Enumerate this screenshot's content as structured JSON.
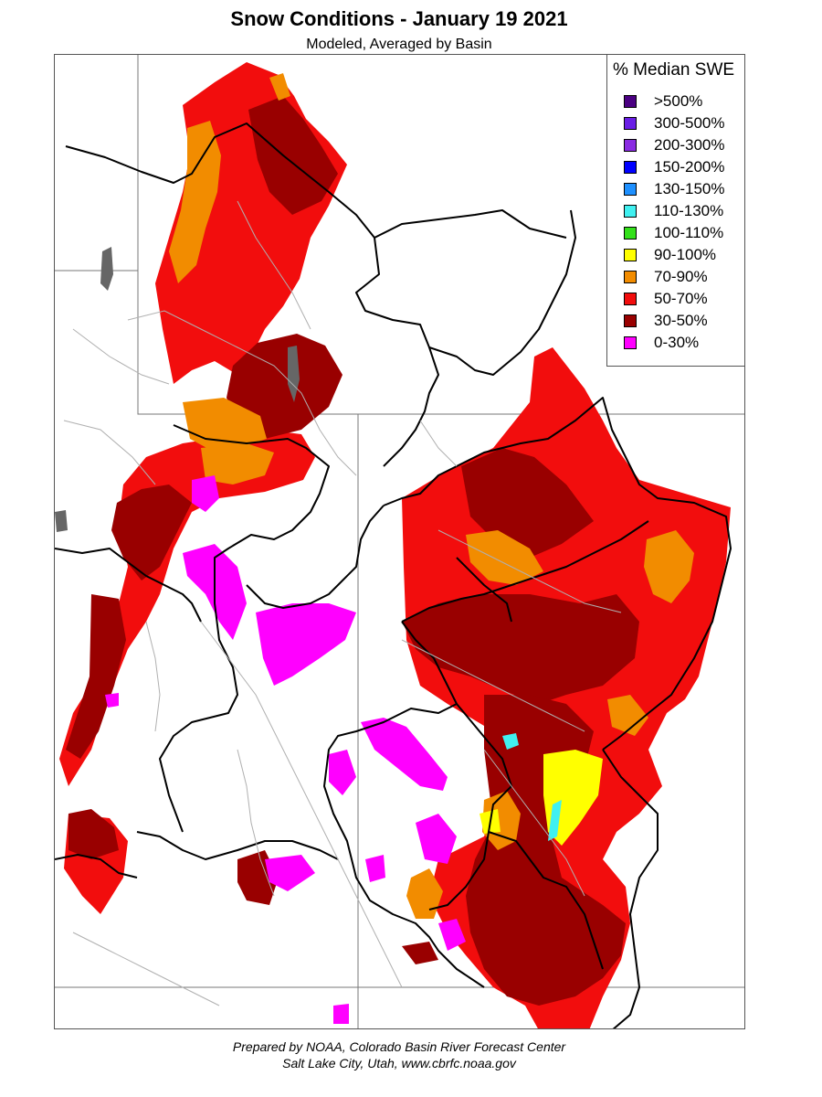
{
  "header": {
    "title": "Snow Conditions - January 19 2021",
    "subtitle": "Modeled, Averaged by Basin"
  },
  "legend": {
    "title": "% Median SWE",
    "items": [
      {
        "label": ">500%",
        "color": "#4b0082"
      },
      {
        "label": "300-500%",
        "color": "#6a1ee6"
      },
      {
        "label": "200-300%",
        "color": "#8a2be2"
      },
      {
        "label": "150-200%",
        "color": "#0000ff"
      },
      {
        "label": "130-150%",
        "color": "#1e90ff"
      },
      {
        "label": "110-130%",
        "color": "#40f0f0"
      },
      {
        "label": "100-110%",
        "color": "#33e01a"
      },
      {
        "label": "90-100%",
        "color": "#ffff00"
      },
      {
        "label": "70-90%",
        "color": "#f28c00"
      },
      {
        "label": "50-70%",
        "color": "#f20d0d"
      },
      {
        "label": "30-50%",
        "color": "#990000"
      },
      {
        "label": "0-30%",
        "color": "#ff00ff"
      }
    ]
  },
  "footer": {
    "line1": "Prepared by NOAA, Colorado Basin River Forecast Center",
    "line2": "Salt Lake City, Utah, www.cbrfc.noaa.gov"
  }
}
